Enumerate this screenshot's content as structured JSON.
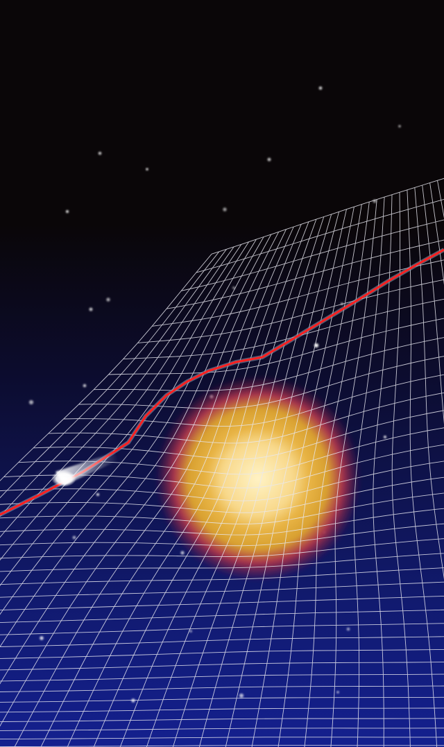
{
  "scene": {
    "colors": {
      "sky_top": "#0a0608",
      "sky_bottom": "#14208f",
      "grid_line": "#e8e8f0",
      "trajectory": "#ff2020",
      "trajectory_shadow": "#8fa0b8",
      "star_core": "#fff2c8",
      "star_mid": "#e0a832",
      "star_halo": "#b02848",
      "comet": "#ffffff"
    },
    "elements": {
      "background": "space-background",
      "grid": "spacetime-grid",
      "star": "massive-star",
      "path": "light-path",
      "comet": "comet-object",
      "stars": "background-stars"
    }
  }
}
